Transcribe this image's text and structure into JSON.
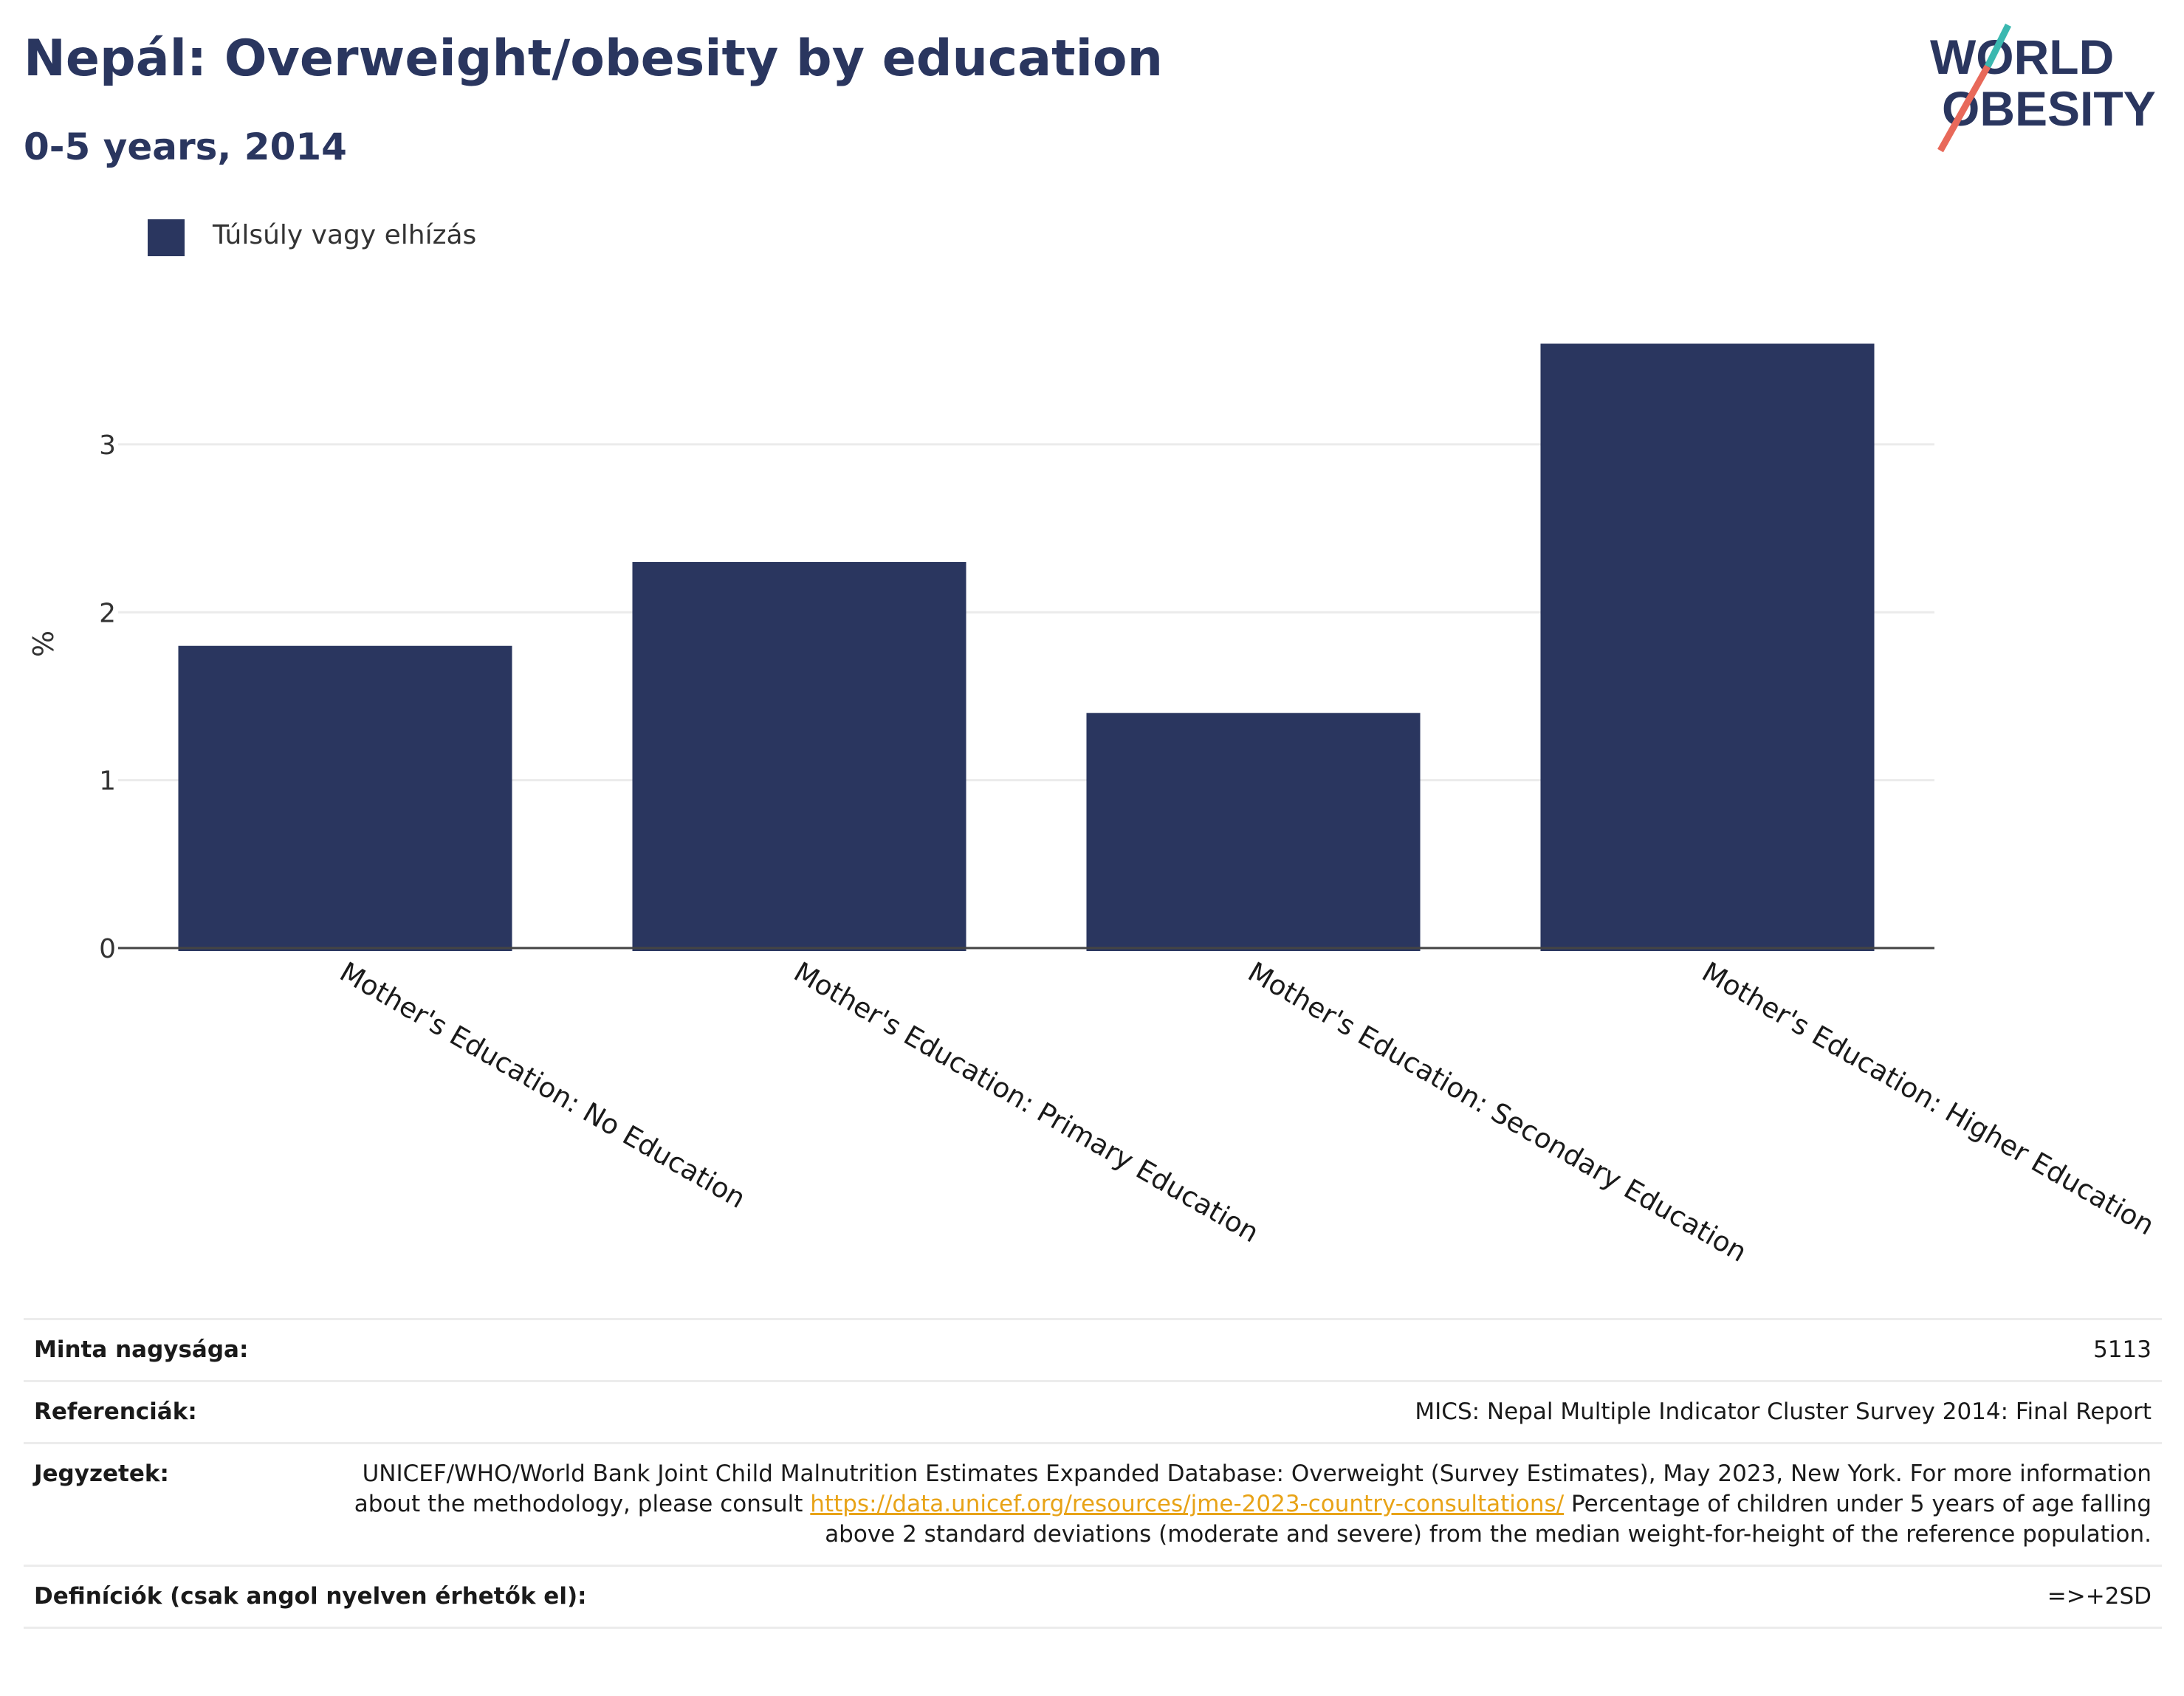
{
  "header": {
    "title": "Nepál: Overweight/obesity by education",
    "subtitle": "0-5 years, 2014"
  },
  "logo": {
    "line1": "WORLD",
    "line2": "OBESITY",
    "colors": {
      "text": "#2a365f",
      "slash_top": "#3bb8b0",
      "slash_bottom": "#e8695a"
    }
  },
  "legend": {
    "label": "Túlsúly vagy elhízás",
    "color": "#2a365f"
  },
  "chart_data": {
    "type": "bar",
    "title": "Nepál: Overweight/obesity by education",
    "subtitle": "0-5 years, 2014",
    "xlabel": "",
    "ylabel": "%",
    "categories": [
      "Mother's Education: No Education",
      "Mother's Education: Primary Education",
      "Mother's Education: Secondary Education",
      "Mother's Education: Higher Education"
    ],
    "series": [
      {
        "name": "Túlsúly vagy elhízás",
        "values": [
          1.8,
          2.3,
          1.4,
          3.6
        ],
        "color": "#2a365f"
      }
    ],
    "ylim": [
      0,
      3.8
    ],
    "yticks": [
      0,
      1,
      2,
      3
    ],
    "grid": true,
    "legend_position": "top-left"
  },
  "meta": {
    "sample_size": {
      "label": "Minta nagysága:",
      "value": "5113"
    },
    "references": {
      "label": "Referenciák:",
      "value": "MICS: Nepal Multiple Indicator Cluster Survey 2014: Final Report"
    },
    "notes": {
      "label": "Jegyzetek:",
      "text_before": "UNICEF/WHO/World Bank Joint Child Malnutrition Estimates Expanded Database: Overweight (Survey Estimates), May 2023, New York. For more information about the methodology, please consult ",
      "link": "https://data.unicef.org/resources/jme-2023-country-consultations/",
      "text_after": " Percentage of children under 5 years of age falling above 2 standard deviations (moderate and severe) from the median weight-for-height of the reference population."
    },
    "definitions": {
      "label": "Definíciók (csak angol nyelven érhetők el):",
      "value": "=>+2SD"
    }
  }
}
